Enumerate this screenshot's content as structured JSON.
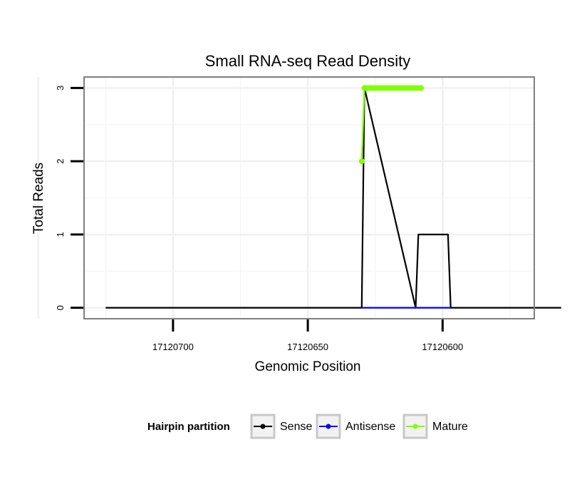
{
  "chart_data": {
    "type": "line",
    "title": "Small RNA-seq Read Density",
    "xlabel": "Genomic Position",
    "ylabel": "Total Reads",
    "x_reversed": true,
    "xlim": [
      17120733,
      17120566
    ],
    "ylim": [
      -0.15,
      3.15
    ],
    "x_ticks": [
      17120700,
      17120650,
      17120600
    ],
    "y_ticks": [
      0,
      1,
      2,
      3
    ],
    "grid": true,
    "legend_position": "bottom",
    "legend_title": "Hairpin partition",
    "series": [
      {
        "name": "Sense",
        "color": "#000000",
        "points": [
          [
            17120725,
            0
          ],
          [
            17120630,
            0
          ],
          [
            17120629,
            3
          ],
          [
            17120610,
            0
          ],
          [
            17120609,
            1
          ],
          [
            17120598,
            1
          ],
          [
            17120597,
            0
          ],
          [
            17120556,
            0
          ]
        ]
      },
      {
        "name": "Antisense",
        "color": "#0000ff",
        "points": [
          [
            17120630,
            0
          ],
          [
            17120597,
            0
          ]
        ]
      },
      {
        "name": "Mature",
        "color": "#80ff00",
        "points": [
          [
            17120630,
            2
          ],
          [
            17120629,
            3
          ],
          [
            17120628,
            3
          ],
          [
            17120627,
            3
          ],
          [
            17120626,
            3
          ],
          [
            17120625,
            3
          ],
          [
            17120624,
            3
          ],
          [
            17120623,
            3
          ],
          [
            17120622,
            3
          ],
          [
            17120621,
            3
          ],
          [
            17120620,
            3
          ],
          [
            17120619,
            3
          ],
          [
            17120618,
            3
          ],
          [
            17120617,
            3
          ],
          [
            17120616,
            3
          ],
          [
            17120615,
            3
          ],
          [
            17120614,
            3
          ],
          [
            17120613,
            3
          ],
          [
            17120612,
            3
          ],
          [
            17120611,
            3
          ],
          [
            17120610,
            3
          ],
          [
            17120609,
            3
          ],
          [
            17120608,
            3
          ]
        ]
      }
    ]
  }
}
